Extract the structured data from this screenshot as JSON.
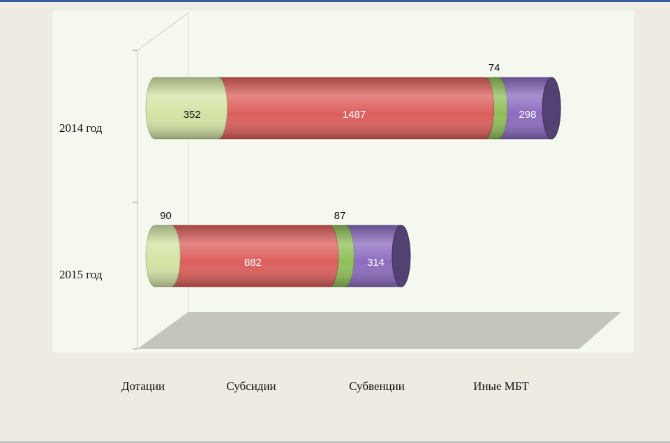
{
  "chart_data": {
    "type": "bar",
    "stacked": true,
    "orientation": "horizontal",
    "categories": [
      "2014 год",
      "2015 год"
    ],
    "series": [
      {
        "name": "Дотации",
        "color": "#d3e4a4",
        "values": [
          352,
          90
        ]
      },
      {
        "name": "Субсидии",
        "color": "#dc5f5c",
        "values": [
          1487,
          882
        ]
      },
      {
        "name": "Субвенции",
        "color": "#8fbf58",
        "values": [
          74,
          87
        ]
      },
      {
        "name": "Иные МБТ",
        "color": "#8c6cbf",
        "values": [
          298,
          314
        ]
      }
    ],
    "legend": "bottom"
  }
}
